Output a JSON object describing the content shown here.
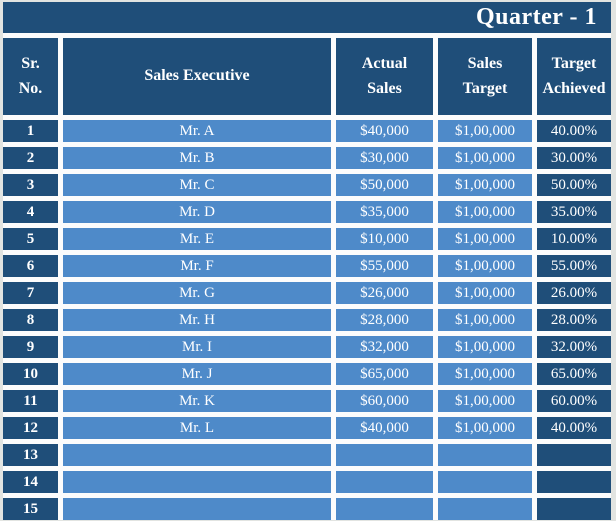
{
  "title": "Quarter - 1",
  "columns": [
    "Sr.\nNo.",
    "Sales Executive",
    "Actual\nSales",
    "Sales\nTarget",
    "Target\nAchieved"
  ],
  "rows": [
    {
      "sr": "1",
      "executive": "Mr. A",
      "actual_sales": "$40,000",
      "sales_target": "$1,00,000",
      "target_achieved": "40.00%"
    },
    {
      "sr": "2",
      "executive": "Mr. B",
      "actual_sales": "$30,000",
      "sales_target": "$1,00,000",
      "target_achieved": "30.00%"
    },
    {
      "sr": "3",
      "executive": "Mr. C",
      "actual_sales": "$50,000",
      "sales_target": "$1,00,000",
      "target_achieved": "50.00%"
    },
    {
      "sr": "4",
      "executive": "Mr. D",
      "actual_sales": "$35,000",
      "sales_target": "$1,00,000",
      "target_achieved": "35.00%"
    },
    {
      "sr": "5",
      "executive": "Mr. E",
      "actual_sales": "$10,000",
      "sales_target": "$1,00,000",
      "target_achieved": "10.00%"
    },
    {
      "sr": "6",
      "executive": "Mr. F",
      "actual_sales": "$55,000",
      "sales_target": "$1,00,000",
      "target_achieved": "55.00%"
    },
    {
      "sr": "7",
      "executive": "Mr. G",
      "actual_sales": "$26,000",
      "sales_target": "$1,00,000",
      "target_achieved": "26.00%"
    },
    {
      "sr": "8",
      "executive": "Mr. H",
      "actual_sales": "$28,000",
      "sales_target": "$1,00,000",
      "target_achieved": "28.00%"
    },
    {
      "sr": "9",
      "executive": "Mr. I",
      "actual_sales": "$32,000",
      "sales_target": "$1,00,000",
      "target_achieved": "32.00%"
    },
    {
      "sr": "10",
      "executive": "Mr. J",
      "actual_sales": "$65,000",
      "sales_target": "$1,00,000",
      "target_achieved": "65.00%"
    },
    {
      "sr": "11",
      "executive": "Mr. K",
      "actual_sales": "$60,000",
      "sales_target": "$1,00,000",
      "target_achieved": "60.00%"
    },
    {
      "sr": "12",
      "executive": "Mr. L",
      "actual_sales": "$40,000",
      "sales_target": "$1,00,000",
      "target_achieved": "40.00%"
    },
    {
      "sr": "13",
      "executive": "",
      "actual_sales": "",
      "sales_target": "",
      "target_achieved": ""
    },
    {
      "sr": "14",
      "executive": "",
      "actual_sales": "",
      "sales_target": "",
      "target_achieved": ""
    },
    {
      "sr": "15",
      "executive": "",
      "actual_sales": "",
      "sales_target": "",
      "target_achieved": ""
    }
  ],
  "colors": {
    "header_dark_blue": "#1F4E79",
    "row_light_blue": "#4E8AC9",
    "gridline_white": "#FCFCFC",
    "page_background": "#E2E4E1",
    "text_white": "#FFFFFF"
  }
}
